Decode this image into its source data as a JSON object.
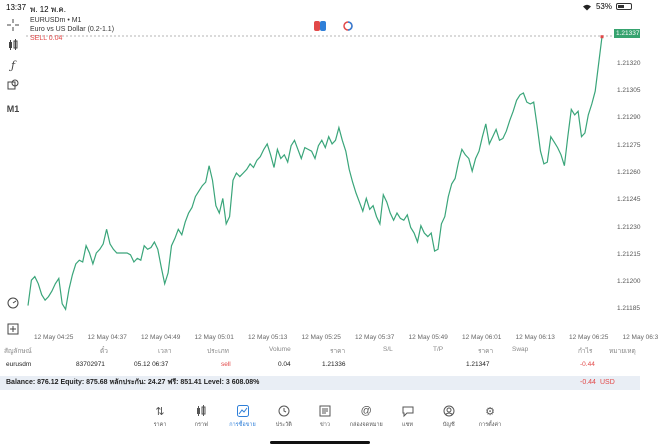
{
  "status": {
    "time": "13:37",
    "date": "พ. 12 พ.ค.",
    "battery": "53%",
    "battery_level": 0.53
  },
  "symbol": {
    "title": "EURUSDm • M1",
    "description": "Euro vs US Dollar (0.2-1.1)",
    "sell": "SELL 0.04"
  },
  "colors": {
    "line": "#3aa57a",
    "sell": "#e24848",
    "accent": "#2f7fd8"
  },
  "toolbar": {
    "timeframe": "M1"
  },
  "chart_data": {
    "type": "line",
    "ylim": [
      1.21178,
      1.21342
    ],
    "current_price": "1.21337",
    "price_ticks": [
      "1.21320",
      "1.21305",
      "1.21290",
      "1.21275",
      "1.21260",
      "1.21245",
      "1.21230",
      "1.21215",
      "1.21200",
      "1.21185"
    ],
    "time_labels": [
      "12 May 04:25",
      "12 May 04:37",
      "12 May 04:49",
      "12 May 05:01",
      "12 May 05:13",
      "12 May 05:25",
      "12 May 05:37",
      "12 May 05:49",
      "12 May 06:01",
      "12 May 06:13",
      "12 May 06:25",
      "12 May 06:3"
    ],
    "values": [
      1.21187,
      1.21201,
      1.21203,
      1.21199,
      1.21193,
      1.2119,
      1.21192,
      1.21195,
      1.21199,
      1.21202,
      1.21188,
      1.21185,
      1.21196,
      1.21204,
      1.2121,
      1.21212,
      1.21211,
      1.2122,
      1.21216,
      1.2121,
      1.21216,
      1.21218,
      1.21221,
      1.21229,
      1.21221,
      1.21218,
      1.21216,
      1.21216,
      1.21216,
      1.21216,
      1.21215,
      1.21211,
      1.21213,
      1.21212,
      1.2122,
      1.21218,
      1.21219,
      1.21222,
      1.21218,
      1.21208,
      1.21199,
      1.21205,
      1.2122,
      1.21224,
      1.21229,
      1.21226,
      1.21233,
      1.21238,
      1.21241,
      1.21247,
      1.2125,
      1.21253,
      1.21255,
      1.21264,
      1.21256,
      1.21242,
      1.21238,
      1.21246,
      1.21232,
      1.21236,
      1.21256,
      1.2126,
      1.21258,
      1.2126,
      1.21262,
      1.21265,
      1.21263,
      1.21267,
      1.21269,
      1.21273,
      1.21276,
      1.2127,
      1.21263,
      1.21273,
      1.21268,
      1.2127,
      1.21266,
      1.21275,
      1.21278,
      1.21273,
      1.21268,
      1.21274,
      1.21273,
      1.21272,
      1.21268,
      1.21275,
      1.21278,
      1.21274,
      1.2128,
      1.21276,
      1.21278,
      1.21285,
      1.21278,
      1.21272,
      1.21262,
      1.21255,
      1.21249,
      1.21244,
      1.21239,
      1.21246,
      1.2124,
      1.21242,
      1.21236,
      1.21232,
      1.21248,
      1.21244,
      1.21238,
      1.21234,
      1.21238,
      1.21235,
      1.21234,
      1.21237,
      1.2123,
      1.21227,
      1.21222,
      1.21231,
      1.21227,
      1.21225,
      1.21227,
      1.21217,
      1.21218,
      1.21232,
      1.21236,
      1.21247,
      1.21254,
      1.21257,
      1.21266,
      1.21273,
      1.2127,
      1.21268,
      1.21261,
      1.21268,
      1.21272,
      1.2128,
      1.21287,
      1.21276,
      1.2128,
      1.21284,
      1.21278,
      1.21279,
      1.21283,
      1.21289,
      1.21294,
      1.213,
      1.21303,
      1.21304,
      1.21299,
      1.21298,
      1.21299,
      1.21286,
      1.21272,
      1.21265,
      1.21266,
      1.2128,
      1.21277,
      1.21274,
      1.2127,
      1.21264,
      1.2128,
      1.21295,
      1.21292,
      1.21294,
      1.2128,
      1.21282,
      1.21292,
      1.21298,
      1.21305,
      1.2132,
      1.21335
    ]
  },
  "table": {
    "headers": [
      "สัญลักษณ์",
      "ตั๋ว",
      "เวลา",
      "ประเภท",
      "Volume",
      "ราคา",
      "S/L",
      "T/P",
      "ราคา",
      "Swap",
      "กำไร",
      "หมายเหตุ"
    ],
    "row": {
      "symbol": "eurusdm",
      "ticket": "83702971",
      "time": "05.12 06:37",
      "type": "sell",
      "volume": "0.04",
      "open_price": "1.21336",
      "price": "1.21347",
      "profit": "-0.44"
    }
  },
  "balance": {
    "text": "Balance: 876.12 Equity: 875.68 หลักประกัน: 24.27 ฟรี: 851.41 Level: 3 608.08%",
    "profit": "-0.44",
    "currency": "USD"
  },
  "nav": [
    {
      "label": "ราคา",
      "icon": "swap-icon"
    },
    {
      "label": "กราฟ",
      "icon": "candlestick-icon"
    },
    {
      "label": "การซื้อขาย",
      "icon": "trade-chart-icon"
    },
    {
      "label": "ประวัติ",
      "icon": "history-icon"
    },
    {
      "label": "ข่าว",
      "icon": "news-icon"
    },
    {
      "label": "กล่องจดหมาย",
      "icon": "mail-icon"
    },
    {
      "label": "แชท",
      "icon": "chat-icon"
    },
    {
      "label": "บัญชี",
      "icon": "account-icon"
    },
    {
      "label": "การตั้งค่า",
      "icon": "gear-icon"
    }
  ]
}
